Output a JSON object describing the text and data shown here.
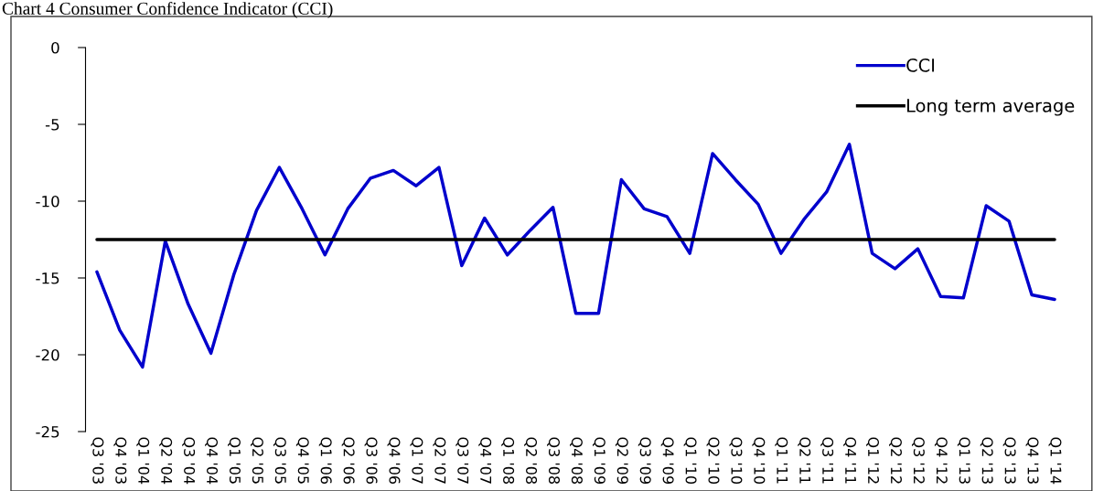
{
  "chart_data": {
    "type": "line",
    "title": "Chart 4 Consumer Confidence Indicator (CCI)",
    "categories": [
      "Q3 '03",
      "Q4 '03",
      "Q1 '04",
      "Q2 '04",
      "Q3 '04",
      "Q4 '04",
      "Q1 '05",
      "Q2 '05",
      "Q3 '05",
      "Q4 '05",
      "Q1 '06",
      "Q2 '06",
      "Q3 '06",
      "Q4 '06",
      "Q1 '07",
      "Q2 '07",
      "Q3 '07",
      "Q4 '07",
      "Q1 '08",
      "Q2 '08",
      "Q3 '08",
      "Q4 '08",
      "Q1 '09",
      "Q2 '09",
      "Q3 '09",
      "Q4 '09",
      "Q1 '10",
      "Q2 '10",
      "Q3 '10",
      "Q4 '10",
      "Q1 '11",
      "Q2 '11",
      "Q3 '11",
      "Q4 '11",
      "Q1 '12",
      "Q2 '12",
      "Q3 '12",
      "Q4 '12",
      "Q1 '13",
      "Q2 '13",
      "Q3 '13",
      "Q4 '13",
      "Q1 '14"
    ],
    "series": [
      {
        "name": "CCI",
        "color": "#0000cc",
        "values": [
          -14.6,
          -18.4,
          -20.8,
          -12.6,
          -16.7,
          -19.9,
          -14.8,
          -10.6,
          -7.8,
          -10.5,
          -13.5,
          -10.5,
          -8.5,
          -8.0,
          -9.0,
          -7.8,
          -14.2,
          -11.1,
          -13.5,
          -11.9,
          -10.4,
          -17.3,
          -17.3,
          -8.6,
          -10.5,
          -11.0,
          -13.4,
          -6.9,
          -8.6,
          -10.2,
          -13.4,
          -11.2,
          -9.4,
          -6.3,
          -13.4,
          -14.4,
          -13.1,
          -16.2,
          -16.3,
          -10.3,
          -11.3,
          -16.1,
          -16.4
        ]
      },
      {
        "name": "Long term average",
        "color": "#000000",
        "values": [
          -12.5,
          -12.5,
          -12.5,
          -12.5,
          -12.5,
          -12.5,
          -12.5,
          -12.5,
          -12.5,
          -12.5,
          -12.5,
          -12.5,
          -12.5,
          -12.5,
          -12.5,
          -12.5,
          -12.5,
          -12.5,
          -12.5,
          -12.5,
          -12.5,
          -12.5,
          -12.5,
          -12.5,
          -12.5,
          -12.5,
          -12.5,
          -12.5,
          -12.5,
          -12.5,
          -12.5,
          -12.5,
          -12.5,
          -12.5,
          -12.5,
          -12.5,
          -12.5,
          -12.5,
          -12.5,
          -12.5,
          -12.5,
          -12.5,
          -12.5
        ]
      }
    ],
    "ylim": [
      -25,
      0
    ],
    "yticks": [
      -25,
      -20,
      -15,
      -10,
      -5,
      0
    ],
    "legend": "top right",
    "grid": false,
    "marker": "none",
    "line_style": "solid"
  }
}
